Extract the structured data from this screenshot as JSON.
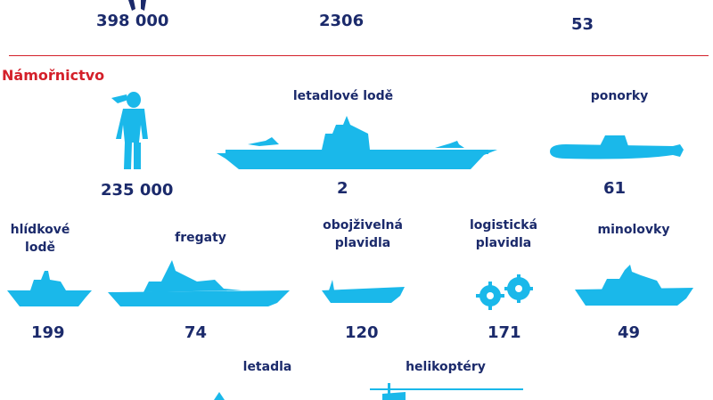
{
  "top_numbers": [
    "398 000",
    "2306",
    "53"
  ],
  "navy": {
    "section_title": "Námořnictvo",
    "personnel": {
      "icon": "sailor-icon",
      "value": "235 000"
    },
    "aircraft_carriers": {
      "label": "letadlové lodě",
      "icon": "aircraft-carrier-icon",
      "value": "2"
    },
    "submarines": {
      "label": "ponorky",
      "icon": "submarine-icon",
      "value": "61"
    },
    "patrol_ships": {
      "label": "hlídkové\nlodě",
      "icon": "patrol-ship-icon",
      "value": "199"
    },
    "frigates": {
      "label": "fregaty",
      "icon": "frigate-icon",
      "value": "74"
    },
    "amphibious": {
      "label": "obojživelná\nplavidla",
      "icon": "amphibious-vessel-icon",
      "value": "120"
    },
    "logistics": {
      "label": "logistická\nplavidla",
      "icon": "gears-icon",
      "value": "171"
    },
    "minesweepers": {
      "label": "minolovky",
      "icon": "minesweeper-icon",
      "value": "49"
    },
    "aircraft": {
      "label": "letadla",
      "icon": "aircraft-icon"
    },
    "helicopters": {
      "label": "helikoptéry",
      "icon": "helicopter-icon"
    }
  },
  "colors": {
    "icon": "#1ab8ea",
    "text": "#1b2a6b",
    "accent": "#d4202a"
  }
}
